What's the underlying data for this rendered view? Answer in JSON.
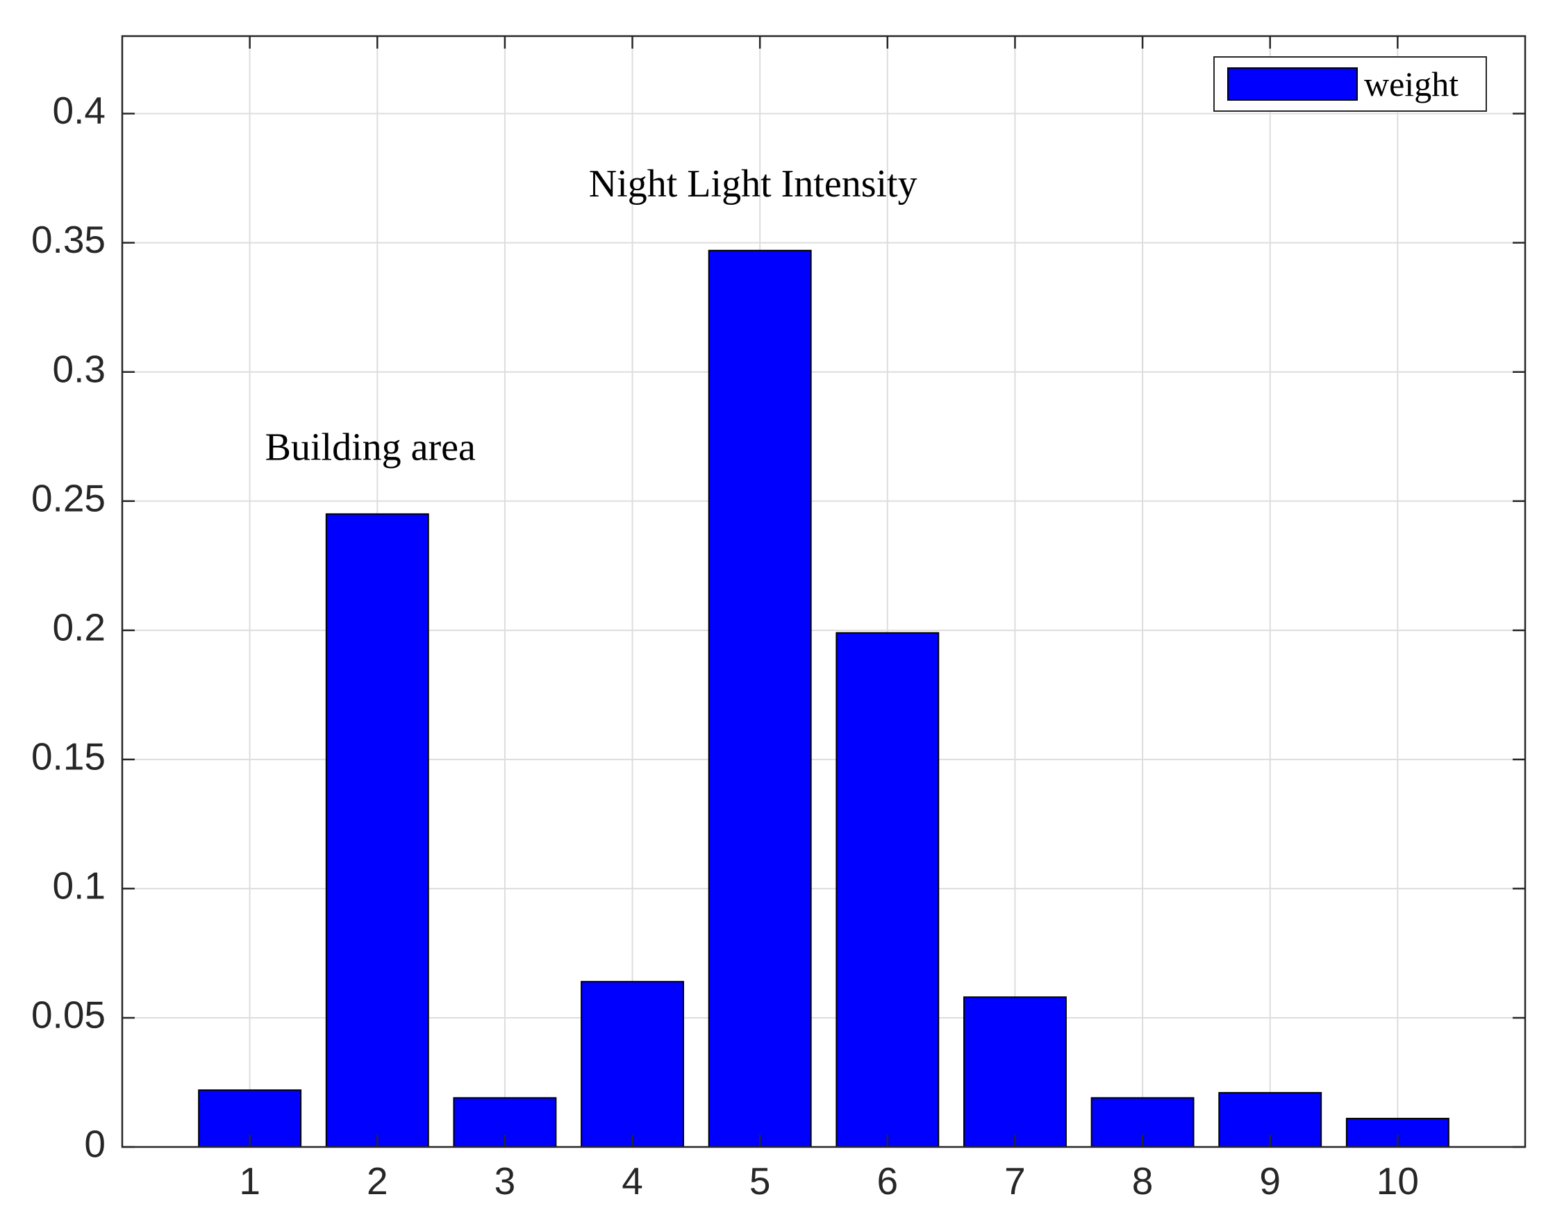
{
  "chart_data": {
    "type": "bar",
    "categories": [
      "1",
      "2",
      "3",
      "4",
      "5",
      "6",
      "7",
      "8",
      "9",
      "10"
    ],
    "series": [
      {
        "name": "weight",
        "values": [
          0.022,
          0.245,
          0.019,
          0.064,
          0.347,
          0.199,
          0.058,
          0.019,
          0.021,
          0.011
        ]
      }
    ],
    "ylim": [
      0,
      0.43
    ],
    "yticks": [
      0,
      0.05,
      0.1,
      0.15,
      0.2,
      0.25,
      0.3,
      0.35,
      0.4
    ],
    "ytick_labels": [
      "0",
      "0.05",
      "0.1",
      "0.15",
      "0.2",
      "0.25",
      "0.3",
      "0.35",
      "0.4"
    ],
    "xlim": [
      0,
      11
    ],
    "grid": true,
    "legend": {
      "position": "top-right",
      "entries": [
        "weight"
      ]
    },
    "annotations": [
      {
        "text": "Building area",
        "category": "2"
      },
      {
        "text": "Night Light Intensity",
        "category": "5"
      }
    ],
    "colors": {
      "bar": "#0000ff",
      "edge": "#000000",
      "grid": "#dddddd",
      "axis": "#262626"
    }
  }
}
